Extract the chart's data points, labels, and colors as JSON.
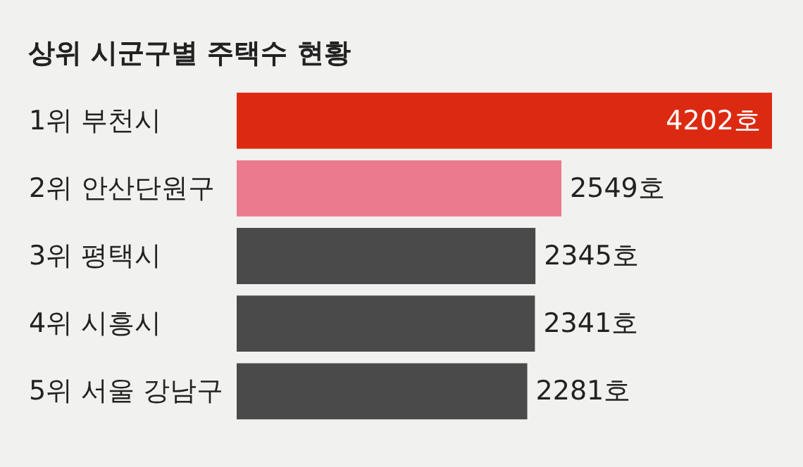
{
  "chart_data": {
    "type": "bar",
    "orientation": "horizontal",
    "title": "상위 시군구별 주택수 현황",
    "categories": [
      "1위 부천시",
      "2위 안산단원구",
      "3위 평택시",
      "4위 시흥시",
      "5위 서울 강남구"
    ],
    "values": [
      4202,
      2549,
      2345,
      2341,
      2281
    ],
    "colors": [
      "#dc2a12",
      "#ec7a8e",
      "#4a4a4a",
      "#4a4a4a",
      "#4a4a4a"
    ],
    "value_labels": [
      "4202호",
      "2549호",
      "2345호",
      "2341호",
      "2281호"
    ]
  }
}
